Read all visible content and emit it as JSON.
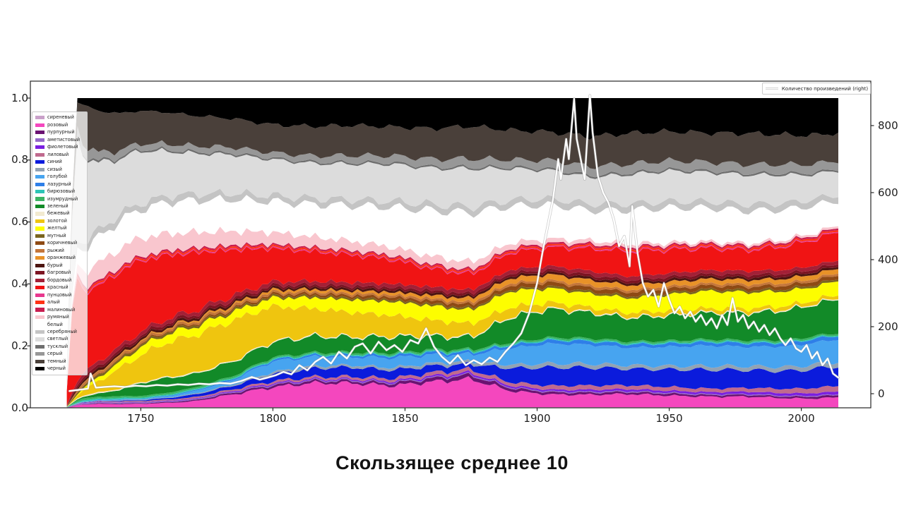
{
  "title": "Скользящее среднее 10",
  "figure": {
    "right_legend_label": "Количество произведений (right)"
  },
  "axes": {
    "x_tick_labels": [
      "1750",
      "1800",
      "1850",
      "1900",
      "1950",
      "2000"
    ],
    "x_tick_values": [
      1750,
      1800,
      1850,
      1900,
      1950,
      2000
    ],
    "y_left_tick_labels": [
      "0.0",
      "0.2",
      "0.4",
      "0.6",
      "0.8",
      "1.0"
    ],
    "y_left_tick_values": [
      0,
      0.2,
      0.4,
      0.6,
      0.8,
      1.0
    ],
    "y_right_tick_labels": [
      "0",
      "200",
      "400",
      "600",
      "800"
    ],
    "y_right_tick_values": [
      0,
      200,
      400,
      600,
      800
    ]
  },
  "chart_data": {
    "type": "area",
    "stacked": true,
    "normalized": true,
    "title": "Скользящее среднее 10",
    "xlim": [
      1708.2,
      2026.3
    ],
    "ylim_left": [
      0,
      1.055
    ],
    "ylim_right": [
      -42,
      932
    ],
    "grid": false,
    "legend_position": "upper left (inside axes)",
    "x_years": [
      1723,
      1728,
      1734,
      1742,
      1750,
      1760,
      1770,
      1785,
      1800,
      1815,
      1830,
      1845,
      1860,
      1875,
      1890,
      1905,
      1920,
      1935,
      1950,
      1965,
      1980,
      1995,
      2005,
      2014
    ],
    "series": [
      {
        "name": "сиреневый",
        "color": "#C9A0C9",
        "values": 0.002
      },
      {
        "name": "розовый",
        "color": "#F447BE",
        "values": [
          0.004,
          0.008,
          0.01,
          0.01,
          0.012,
          0.015,
          0.02,
          0.045,
          0.075,
          0.09,
          0.088,
          0.078,
          0.092,
          0.1,
          0.058,
          0.045,
          0.042,
          0.045,
          0.04,
          0.036,
          0.036,
          0.03,
          0.03,
          0.036
        ]
      },
      {
        "name": "пурпурный",
        "color": "#6B1272",
        "values": [
          0.001,
          0.001,
          0.002,
          0.002,
          0.002,
          0.003,
          0.004,
          0.006,
          0.008,
          0.008,
          0.008,
          0.009,
          0.012,
          0.014,
          0.01,
          0.008,
          0.007,
          0.007,
          0.007,
          0.006,
          0.006,
          0.006,
          0.007,
          0.008
        ]
      },
      {
        "name": "аметистовый",
        "color": "#9468C8",
        "values": 0.003
      },
      {
        "name": "фиолетовый",
        "color": "#7A1FE0",
        "values": [
          0.0,
          0.001,
          0.001,
          0.001,
          0.001,
          0.002,
          0.002,
          0.003,
          0.004,
          0.004,
          0.004,
          0.005,
          0.006,
          0.006,
          0.006,
          0.006,
          0.007,
          0.007,
          0.007,
          0.007,
          0.008,
          0.008,
          0.009,
          0.01
        ]
      },
      {
        "name": "лиловый",
        "color": "#C06A8E",
        "values": [
          0.001,
          0.001,
          0.002,
          0.003,
          0.004,
          0.004,
          0.005,
          0.006,
          0.008,
          0.008,
          0.009,
          0.01,
          0.012,
          0.012,
          0.012,
          0.014,
          0.014,
          0.013,
          0.013,
          0.012,
          0.013,
          0.015,
          0.018,
          0.02
        ]
      },
      {
        "name": "синий",
        "color": "#0B1BDC",
        "values": [
          0.0,
          0.001,
          0.001,
          0.002,
          0.003,
          0.005,
          0.009,
          0.012,
          0.026,
          0.032,
          0.034,
          0.03,
          0.024,
          0.018,
          0.05,
          0.065,
          0.06,
          0.056,
          0.06,
          0.065,
          0.06,
          0.06,
          0.066,
          0.072
        ]
      },
      {
        "name": "сизый",
        "color": "#92A2B4",
        "values": [
          0.0,
          0.001,
          0.001,
          0.002,
          0.002,
          0.002,
          0.003,
          0.004,
          0.008,
          0.008,
          0.008,
          0.009,
          0.01,
          0.01,
          0.012,
          0.014,
          0.013,
          0.012,
          0.012,
          0.013,
          0.013,
          0.014,
          0.015,
          0.016
        ]
      },
      {
        "name": "голубой",
        "color": "#47A4F0",
        "values": [
          0.0,
          0.001,
          0.001,
          0.002,
          0.002,
          0.004,
          0.008,
          0.016,
          0.04,
          0.034,
          0.03,
          0.036,
          0.03,
          0.024,
          0.06,
          0.07,
          0.064,
          0.06,
          0.066,
          0.07,
          0.066,
          0.07,
          0.076,
          0.08
        ]
      },
      {
        "name": "лазурный",
        "color": "#2E7FE8",
        "values": [
          0.0,
          0.0,
          0.001,
          0.001,
          0.001,
          0.002,
          0.003,
          0.004,
          0.006,
          0.006,
          0.007,
          0.008,
          0.009,
          0.008,
          0.01,
          0.012,
          0.012,
          0.011,
          0.011,
          0.012,
          0.012,
          0.012,
          0.013,
          0.014
        ]
      },
      {
        "name": "бирюзовый",
        "color": "#2EC4B6",
        "values": 0.004
      },
      {
        "name": "изумрудный",
        "color": "#3CB464",
        "values": 0.006
      },
      {
        "name": "зеленый",
        "color": "#128A28",
        "values": [
          0.002,
          0.004,
          0.01,
          0.02,
          0.045,
          0.052,
          0.046,
          0.05,
          0.056,
          0.06,
          0.054,
          0.058,
          0.048,
          0.042,
          0.09,
          0.1,
          0.085,
          0.08,
          0.086,
          0.09,
          0.092,
          0.1,
          0.11,
          0.12
        ]
      },
      {
        "name": "бежевый",
        "color": "#F2EAD0",
        "values": 0.004
      },
      {
        "name": "золотой",
        "color": "#EFC50F",
        "values": [
          0.002,
          0.015,
          0.035,
          0.065,
          0.095,
          0.12,
          0.13,
          0.14,
          0.13,
          0.1,
          0.088,
          0.075,
          0.055,
          0.045,
          0.032,
          0.02,
          0.015,
          0.014,
          0.014,
          0.012,
          0.012,
          0.012,
          0.012,
          0.012
        ]
      },
      {
        "name": "желтый",
        "color": "#FDFD00",
        "values": [
          0.001,
          0.006,
          0.012,
          0.02,
          0.03,
          0.03,
          0.03,
          0.03,
          0.032,
          0.04,
          0.046,
          0.05,
          0.052,
          0.048,
          0.058,
          0.05,
          0.046,
          0.05,
          0.055,
          0.06,
          0.055,
          0.05,
          0.046,
          0.05
        ]
      },
      {
        "name": "мутный",
        "color": "#7A651E",
        "values": 0.007
      },
      {
        "name": "коричневый",
        "color": "#8E4A14",
        "values": [
          0.0,
          0.001,
          0.002,
          0.003,
          0.004,
          0.004,
          0.005,
          0.006,
          0.007,
          0.008,
          0.009,
          0.01,
          0.011,
          0.012,
          0.014,
          0.014,
          0.013,
          0.013,
          0.013,
          0.012,
          0.012,
          0.012,
          0.013,
          0.014
        ]
      },
      {
        "name": "рыжий",
        "color": "#C4763A",
        "values": 0.008
      },
      {
        "name": "оранжевый",
        "color": "#E89228",
        "values": [
          0.0,
          0.001,
          0.002,
          0.003,
          0.004,
          0.004,
          0.005,
          0.006,
          0.008,
          0.008,
          0.009,
          0.01,
          0.012,
          0.014,
          0.018,
          0.02,
          0.018,
          0.016,
          0.016,
          0.015,
          0.015,
          0.015,
          0.016,
          0.016
        ]
      },
      {
        "name": "бурый",
        "color": "#4C1410",
        "values": 0.008
      },
      {
        "name": "багровый",
        "color": "#7C1422",
        "values": 0.009
      },
      {
        "name": "бордовый",
        "color": "#A32036",
        "values": 0.013
      },
      {
        "name": "красный",
        "color": "#F01414",
        "values": [
          0.45,
          0.26,
          0.23,
          0.245,
          0.25,
          0.22,
          0.2,
          0.16,
          0.125,
          0.11,
          0.1,
          0.088,
          0.065,
          0.055,
          0.06,
          0.065,
          0.075,
          0.085,
          0.08,
          0.075,
          0.07,
          0.08,
          0.09,
          0.1
        ]
      },
      {
        "name": "пунцовый",
        "color": "#E8388E",
        "values": 0.004
      },
      {
        "name": "алый",
        "color": "#FF3214",
        "values": 0.006
      },
      {
        "name": "малиновый",
        "color": "#C81E50",
        "values": 0.006
      },
      {
        "name": "румяный",
        "color": "#F9C6CE",
        "values": [
          0.01,
          0.045,
          0.055,
          0.06,
          0.065,
          0.06,
          0.055,
          0.05,
          0.045,
          0.04,
          0.035,
          0.03,
          0.03,
          0.028,
          0.02,
          0.015,
          0.012,
          0.01,
          0.009,
          0.008,
          0.008,
          0.008,
          0.008,
          0.008
        ]
      },
      {
        "name": "белый",
        "color": "#FFFFFF",
        "values": [
          0.05,
          0.065,
          0.08,
          0.09,
          0.1,
          0.11,
          0.11,
          0.11,
          0.115,
          0.12,
          0.13,
          0.145,
          0.165,
          0.175,
          0.13,
          0.12,
          0.1,
          0.115,
          0.12,
          0.115,
          0.11,
          0.1,
          0.095,
          0.09
        ]
      },
      {
        "name": "серебряный",
        "color": "#C4C4C4",
        "values": 0.022
      },
      {
        "name": "светлый",
        "color": "#DCDCDC",
        "values": [
          0.4,
          0.27,
          0.21,
          0.18,
          0.185,
          0.155,
          0.14,
          0.135,
          0.135,
          0.13,
          0.13,
          0.135,
          0.13,
          0.135,
          0.112,
          0.1,
          0.09,
          0.1,
          0.105,
          0.1,
          0.1,
          0.095,
          0.085,
          0.088
        ]
      },
      {
        "name": "тусклый",
        "color": "#6E6E6E",
        "values": 0.006
      },
      {
        "name": "серый",
        "color": "#979797",
        "values": [
          0.04,
          0.03,
          0.026,
          0.022,
          0.02,
          0.02,
          0.02,
          0.02,
          0.02,
          0.022,
          0.025,
          0.025,
          0.028,
          0.03,
          0.026,
          0.03,
          0.03,
          0.03,
          0.03,
          0.03,
          0.03,
          0.03,
          0.03,
          0.03
        ]
      },
      {
        "name": "темный",
        "color": "#4A403A",
        "values": [
          0.03,
          0.12,
          0.13,
          0.12,
          0.115,
          0.11,
          0.105,
          0.1,
          0.105,
          0.11,
          0.11,
          0.105,
          0.11,
          0.115,
          0.105,
          0.1,
          0.1,
          0.105,
          0.1,
          0.1,
          0.105,
          0.1,
          0.1,
          0.1
        ]
      },
      {
        "name": "черный",
        "color": "#000000",
        "values": [
          0.005,
          0.02,
          0.04,
          0.05,
          0.045,
          0.05,
          0.06,
          0.072,
          0.1,
          0.105,
          0.1,
          0.105,
          0.11,
          0.1,
          0.115,
          0.12,
          0.13,
          0.12,
          0.115,
          0.12,
          0.12,
          0.125,
          0.13,
          0.125
        ]
      }
    ],
    "line_series": {
      "name": "Количество произведений (right)",
      "axis": "right",
      "color": "#FFFFFF",
      "x": [
        1723,
        1727,
        1730,
        1731,
        1733,
        1736,
        1740,
        1744,
        1748,
        1752,
        1756,
        1760,
        1764,
        1768,
        1772,
        1776,
        1780,
        1784,
        1788,
        1792,
        1795,
        1798,
        1801,
        1804,
        1807,
        1810,
        1813,
        1816,
        1819,
        1822,
        1825,
        1828,
        1831,
        1834,
        1837,
        1840,
        1843,
        1846,
        1849,
        1852,
        1855,
        1858,
        1861,
        1864,
        1867,
        1870,
        1873,
        1876,
        1879,
        1882,
        1885,
        1888,
        1891,
        1894,
        1897,
        1900,
        1902,
        1904,
        1906,
        1908,
        1909,
        1911,
        1912,
        1914,
        1915,
        1917,
        1918,
        1920,
        1921,
        1923,
        1925,
        1927,
        1929,
        1931,
        1933,
        1935,
        1936,
        1938,
        1940,
        1942,
        1944,
        1946,
        1948,
        1950,
        1952,
        1954,
        1956,
        1958,
        1960,
        1962,
        1964,
        1966,
        1968,
        1970,
        1972,
        1974,
        1976,
        1978,
        1980,
        1982,
        1984,
        1986,
        1988,
        1990,
        1992,
        1994,
        1996,
        1998,
        2000,
        2002,
        2004,
        2006,
        2008,
        2010,
        2012,
        2014
      ],
      "y": [
        8,
        12,
        15,
        60,
        18,
        20,
        22,
        20,
        24,
        22,
        26,
        24,
        28,
        26,
        30,
        28,
        32,
        30,
        38,
        50,
        42,
        48,
        55,
        65,
        58,
        85,
        70,
        95,
        110,
        90,
        125,
        105,
        140,
        150,
        120,
        155,
        130,
        145,
        125,
        160,
        150,
        195,
        140,
        110,
        90,
        115,
        85,
        100,
        88,
        108,
        95,
        125,
        150,
        180,
        240,
        330,
        420,
        500,
        580,
        700,
        640,
        760,
        700,
        880,
        760,
        680,
        640,
        890,
        780,
        650,
        600,
        570,
        520,
        440,
        470,
        380,
        560,
        420,
        330,
        290,
        310,
        260,
        330,
        280,
        240,
        260,
        225,
        245,
        215,
        235,
        205,
        225,
        195,
        235,
        205,
        285,
        215,
        235,
        195,
        215,
        185,
        205,
        175,
        195,
        165,
        145,
        165,
        135,
        125,
        145,
        105,
        125,
        85,
        105,
        60,
        48
      ]
    }
  }
}
